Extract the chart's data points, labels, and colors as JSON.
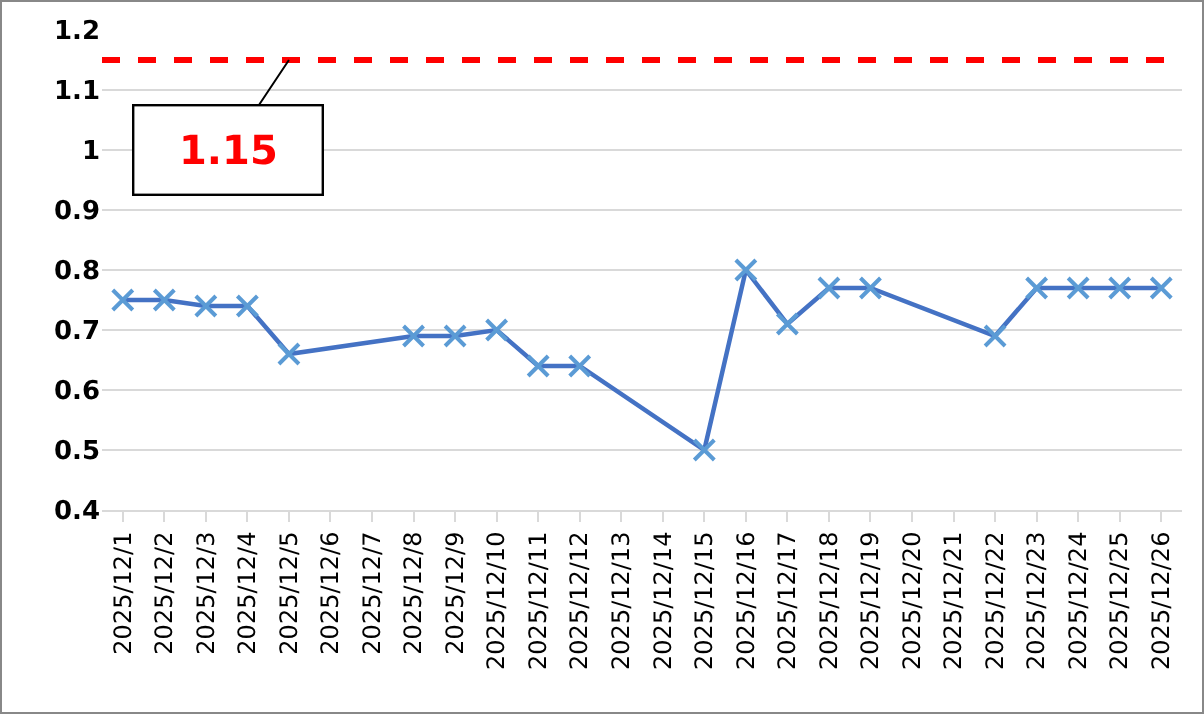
{
  "chart_data": {
    "type": "line",
    "categories": [
      "2025/12/1",
      "2025/12/2",
      "2025/12/3",
      "2025/12/4",
      "2025/12/5",
      "2025/12/6",
      "2025/12/7",
      "2025/12/8",
      "2025/12/9",
      "2025/12/10",
      "2025/12/11",
      "2025/12/12",
      "2025/12/13",
      "2025/12/14",
      "2025/12/15",
      "2025/12/16",
      "2025/12/17",
      "2025/12/18",
      "2025/12/19",
      "2025/12/20",
      "2025/12/21",
      "2025/12/22",
      "2025/12/23",
      "2025/12/24",
      "2025/12/25",
      "2025/12/26"
    ],
    "series": [
      {
        "color": "#4472c4",
        "values": [
          0.75,
          0.75,
          0.74,
          0.74,
          0.66,
          null,
          null,
          0.69,
          0.69,
          0.7,
          0.64,
          0.64,
          null,
          null,
          0.5,
          0.8,
          0.71,
          0.77,
          0.77,
          null,
          null,
          0.69,
          0.77,
          0.77,
          0.77,
          0.77
        ]
      }
    ],
    "ylim": [
      0.4,
      1.2
    ],
    "yticks": [
      0.4,
      0.5,
      0.6,
      0.7,
      0.8,
      0.9,
      {
        "value": 1,
        "label": "1"
      },
      1.1,
      1.2
    ],
    "grid": "y",
    "marker": "cross",
    "line_style": "solid",
    "ref_lines": [
      {
        "axis": "y",
        "value": 1.15,
        "color": "#ff0000",
        "line_style": "dashed"
      }
    ],
    "annotations": [
      {
        "text": "1.15",
        "x": "2025/12/5",
        "y": 1.15
      }
    ]
  }
}
